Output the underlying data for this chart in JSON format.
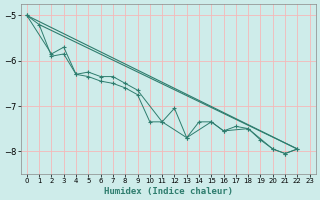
{
  "xlabel": "Humidex (Indice chaleur)",
  "background_color": "#ceecea",
  "grid_color": "#f5b8b8",
  "line_color": "#2e7d6e",
  "xlim": [
    -0.5,
    23.5
  ],
  "ylim": [
    -8.5,
    -4.75
  ],
  "yticks": [
    -8,
    -7,
    -6,
    -5
  ],
  "xticks": [
    0,
    1,
    2,
    3,
    4,
    5,
    6,
    7,
    8,
    9,
    10,
    11,
    12,
    13,
    14,
    15,
    16,
    17,
    18,
    19,
    20,
    21,
    22,
    23
  ],
  "series_main": {
    "x": [
      0,
      1,
      2,
      3,
      4,
      5,
      6,
      7,
      8,
      9,
      10,
      11,
      12,
      13,
      14,
      15,
      16,
      17,
      18,
      19,
      20,
      21,
      22
    ],
    "y": [
      -5.0,
      -5.2,
      -5.9,
      -5.85,
      -6.3,
      -6.35,
      -6.45,
      -6.5,
      -6.6,
      -6.75,
      -7.35,
      -7.35,
      -7.05,
      -7.7,
      -7.35,
      -7.35,
      -7.55,
      -7.45,
      -7.5,
      -7.75,
      -7.95,
      -8.05,
      -7.95
    ]
  },
  "series_upper": {
    "x": [
      0,
      2,
      3,
      4,
      5,
      6,
      7,
      8,
      9,
      11,
      13,
      15,
      16,
      18,
      20,
      21,
      22
    ],
    "y": [
      -5.0,
      -5.85,
      -5.7,
      -6.3,
      -6.25,
      -6.35,
      -6.35,
      -6.5,
      -6.65,
      -7.35,
      -7.7,
      -7.35,
      -7.55,
      -7.5,
      -7.95,
      -8.05,
      -7.95
    ]
  },
  "line_upper": {
    "x": [
      0,
      22
    ],
    "y": [
      -5.0,
      -7.95
    ]
  },
  "line_lower": {
    "x": [
      1,
      22
    ],
    "y": [
      -5.2,
      -7.95
    ]
  }
}
